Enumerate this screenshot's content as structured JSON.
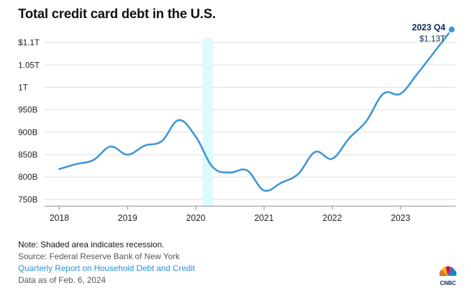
{
  "title": "Total credit card debt in the U.S.",
  "footer": {
    "note": "Note: Shaded area indicates recession.",
    "source": "Source: Federal Reserve Bank of New York",
    "report_link": "Quarterly Report on Household Debt and Credit",
    "as_of": "Data as of Feb. 6, 2024"
  },
  "logo_text": "CNBC",
  "colors": {
    "line": "#3d95d6",
    "recession": "#dcfbff",
    "annotation": "#0c2a5a",
    "grid": "#dddddd"
  },
  "chart_data": {
    "type": "line",
    "title": "Total credit card debt in the U.S.",
    "x_ticks": [
      "2018",
      "2019",
      "2020",
      "2021",
      "2022",
      "2023"
    ],
    "y_ticks": [
      "750B",
      "800B",
      "850B",
      "900B",
      "950B",
      "1T",
      "1.05T",
      "$1.1T"
    ],
    "y_tick_values": [
      750,
      800,
      850,
      900,
      950,
      1000,
      1050,
      1100
    ],
    "ylim": [
      735,
      1125
    ],
    "grid": "horizontal",
    "recession": [
      2020.1,
      2020.25
    ],
    "series": [
      {
        "unit": "billions USD",
        "x": [
          2018.0,
          2018.25,
          2018.5,
          2018.75,
          2019.0,
          2019.25,
          2019.5,
          2019.75,
          2020.0,
          2020.25,
          2020.5,
          2020.75,
          2021.0,
          2021.25,
          2021.5,
          2021.75,
          2022.0,
          2022.25,
          2022.5,
          2022.75,
          2023.0,
          2023.25,
          2023.5,
          2023.75
        ],
        "y": [
          818,
          829,
          838,
          868,
          850,
          870,
          880,
          927,
          890,
          822,
          810,
          815,
          770,
          787,
          807,
          856,
          841,
          887,
          925,
          986,
          986,
          1031,
          1080,
          1129
        ]
      }
    ],
    "annotation": {
      "period": "2023 Q4",
      "value": "$1.13T"
    }
  }
}
